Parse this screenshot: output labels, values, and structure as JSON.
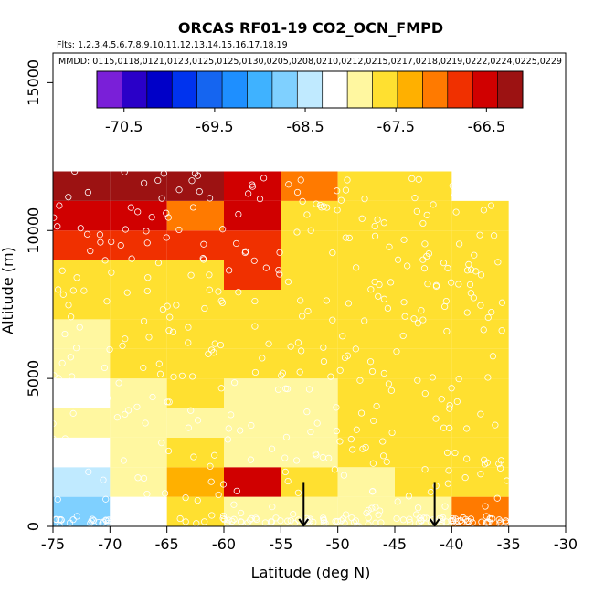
{
  "chart_data": {
    "type": "heatmap",
    "title": "ORCAS RF01-19 CO2_OCN_FMPD",
    "flights_line": "Flts: 1,2,3,4,5,6,7,8,9,10,11,12,13,14,15,16,17,18,19",
    "dates_line": "MMDD: 0115,0118,0121,0123,0125,0125,0130,0205,0208,0210,0212,0215,0217,0218,0219,0222,0224,0225,0229",
    "xlabel": "Latitude (deg N)",
    "ylabel": "Altitude (m)",
    "xlim": [
      -75,
      -30
    ],
    "ylim": [
      0,
      16000
    ],
    "x_ticks": [
      -75,
      -70,
      -65,
      -60,
      -55,
      -50,
      -45,
      -40,
      -35,
      -30
    ],
    "y_ticks": [
      0,
      5000,
      10000,
      15000
    ],
    "colorbar": {
      "range": [
        -70.8,
        -66.1
      ],
      "ticks": [
        -70.5,
        -69.5,
        -68.5,
        -67.5,
        -66.5
      ],
      "colors": [
        "#7a1fd8",
        "#2a00c8",
        "#0000c8",
        "#0033ee",
        "#1565f0",
        "#1e8fff",
        "#3fb2ff",
        "#7fd0ff",
        "#c0eaff",
        "#ffffff",
        "#fff7a0",
        "#ffe030",
        "#ffb000",
        "#ff7a00",
        "#f03000",
        "#d00000",
        "#9c1212"
      ]
    },
    "latitude_bins": [
      -75,
      -70,
      -65,
      -60,
      -55,
      -50,
      -45,
      -40,
      -35
    ],
    "altitude_bin_m": 1000,
    "cells": [
      [
        -68.7,
        -68.1,
        -67.6,
        -67.8,
        -68.0,
        -67.9,
        -67.8,
        -67.2
      ],
      [
        -68.5,
        -68.0,
        -67.3,
        -66.5,
        -67.5,
        -67.8,
        -67.7,
        -67.6
      ],
      [
        -68.2,
        -68.0,
        -67.6,
        -67.8,
        -67.9,
        -67.7,
        -67.7,
        -67.7
      ],
      [
        -68.0,
        -67.9,
        -67.8,
        -67.8,
        -67.8,
        -67.6,
        -67.7,
        -67.6
      ],
      [
        -68.2,
        -68.0,
        -67.7,
        -67.8,
        -67.9,
        -67.7,
        -67.6,
        -67.5
      ],
      [
        -67.9,
        -67.7,
        -67.6,
        -67.7,
        -67.6,
        -67.6,
        -67.5,
        -67.6
      ],
      [
        -67.8,
        -67.7,
        -67.6,
        -67.6,
        -67.6,
        -67.6,
        -67.6,
        -67.5
      ],
      [
        -67.7,
        -67.6,
        -67.6,
        -67.6,
        -67.6,
        -67.6,
        -67.5,
        -67.5
      ],
      [
        -67.7,
        -67.6,
        -67.6,
        -66.9,
        -67.6,
        -67.6,
        -67.5,
        -67.5
      ],
      [
        -66.8,
        -66.9,
        -66.8,
        -66.9,
        -67.5,
        -67.6,
        -67.5,
        -67.5
      ],
      [
        -66.6,
        -66.5,
        -67.0,
        -66.5,
        -67.6,
        -67.6,
        -67.6,
        -67.6
      ],
      [
        -66.3,
        -66.3,
        -66.3,
        -66.4,
        -67.0,
        -67.5,
        -67.5,
        null
      ]
    ],
    "annotations": [
      {
        "type": "arrow",
        "x": -53.0,
        "y_from": 1500,
        "y_to": 0
      },
      {
        "type": "arrow",
        "x": -41.5,
        "y_from": 1500,
        "y_to": 0
      }
    ],
    "points_note": "open white circles mark individual sample locations"
  }
}
